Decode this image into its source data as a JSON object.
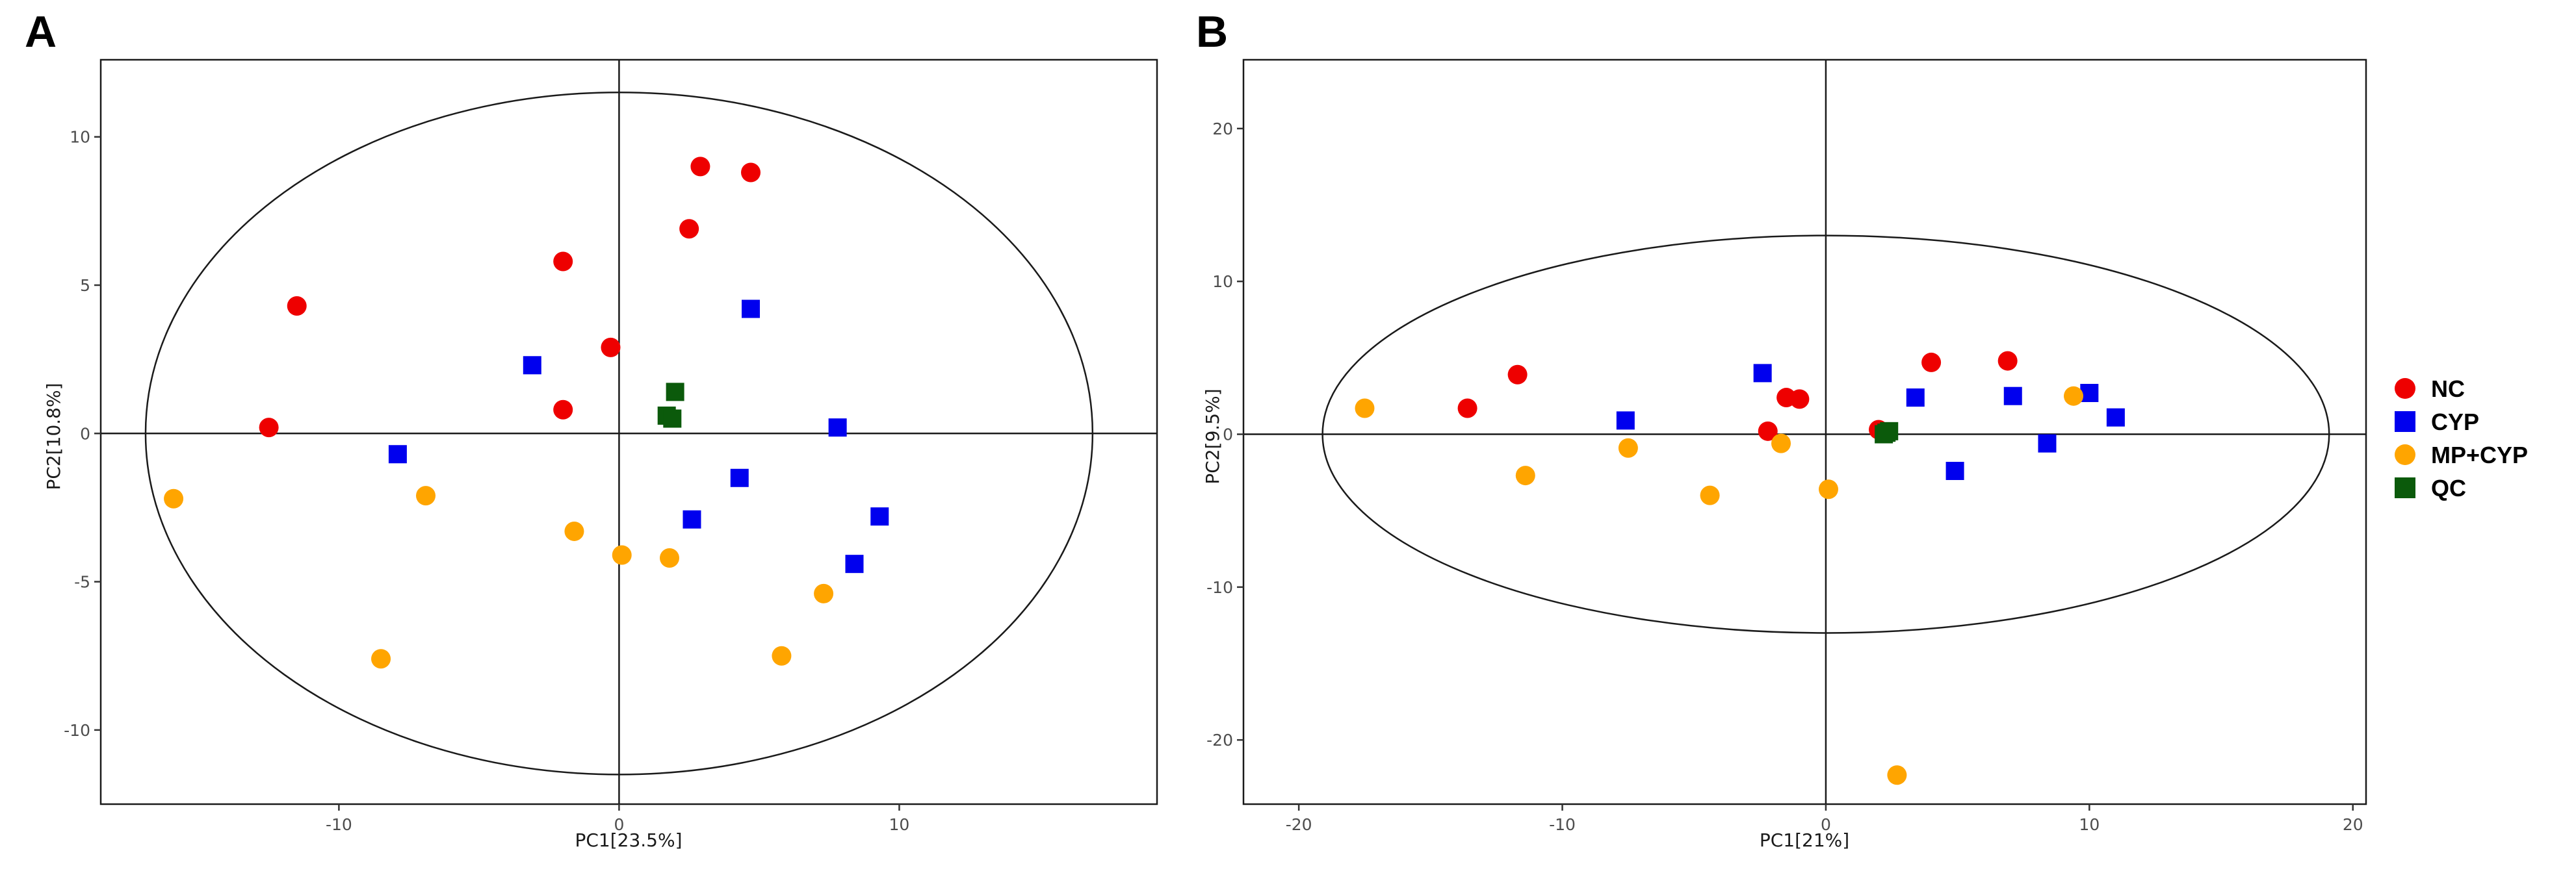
{
  "chart_data": [
    {
      "type": "scatter",
      "panel_label": "A",
      "title": "",
      "xlabel": "PC1[23.5%]",
      "ylabel": "PC2[10.8%]",
      "xlim": [
        -18.5,
        19.2
      ],
      "ylim": [
        -12.5,
        12.6
      ],
      "xticks": [
        -10,
        0,
        10
      ],
      "xtick_labels": [
        "-10",
        "0",
        "10"
      ],
      "yticks": [
        -10,
        -5,
        0,
        5,
        10
      ],
      "ytick_labels": [
        "-10",
        "-5",
        "0",
        "5",
        "10"
      ],
      "grid": false,
      "ellipse": {
        "cx": 0,
        "cy": 0,
        "rx": 16.9,
        "ry": 11.5
      },
      "series": [
        {
          "name": "NC",
          "marker": "circle",
          "color": "#ee0000",
          "points": [
            [
              -11.5,
              4.3
            ],
            [
              -12.5,
              0.2
            ],
            [
              -2.0,
              5.8
            ],
            [
              -2.0,
              0.8
            ],
            [
              -0.3,
              2.9
            ],
            [
              2.5,
              6.9
            ],
            [
              2.9,
              9.0
            ],
            [
              4.7,
              8.8
            ]
          ]
        },
        {
          "name": "CYP",
          "marker": "square",
          "color": "#0000ee",
          "points": [
            [
              -7.9,
              -0.7
            ],
            [
              -3.1,
              2.3
            ],
            [
              4.7,
              4.2
            ],
            [
              7.8,
              0.2
            ],
            [
              4.3,
              -1.5
            ],
            [
              2.6,
              -2.9
            ],
            [
              9.3,
              -2.8
            ],
            [
              8.4,
              -4.4
            ]
          ]
        },
        {
          "name": "MP+CYP",
          "marker": "circle",
          "color": "#ffa500",
          "points": [
            [
              -15.9,
              -2.2
            ],
            [
              -6.9,
              -2.1
            ],
            [
              -8.5,
              -7.6
            ],
            [
              -1.6,
              -3.3
            ],
            [
              0.1,
              -4.1
            ],
            [
              1.8,
              -4.2
            ],
            [
              7.3,
              -5.4
            ],
            [
              5.8,
              -7.5
            ]
          ]
        },
        {
          "name": "QC",
          "marker": "square",
          "color": "#0b5a0b",
          "points": [
            [
              1.7,
              0.6
            ],
            [
              2.0,
              1.4
            ],
            [
              1.9,
              0.5
            ]
          ]
        }
      ]
    },
    {
      "type": "scatter",
      "panel_label": "B",
      "title": "",
      "xlabel": "PC1[21%]",
      "ylabel": "PC2[9.5%]",
      "xlim": [
        -22.1,
        20.5
      ],
      "ylim": [
        -24.2,
        24.5
      ],
      "xticks": [
        -20,
        -10,
        0,
        10,
        20
      ],
      "xtick_labels": [
        "-20",
        "-10",
        "0",
        "10",
        "20"
      ],
      "yticks": [
        -20,
        -10,
        0,
        10,
        20
      ],
      "ytick_labels": [
        "-20",
        "-10",
        "0",
        "10",
        "20"
      ],
      "grid": false,
      "ellipse": {
        "cx": 0,
        "cy": 0,
        "rx": 19.1,
        "ry": 13.0
      },
      "series": [
        {
          "name": "NC",
          "marker": "circle",
          "color": "#ee0000",
          "points": [
            [
              -13.6,
              1.7
            ],
            [
              -11.7,
              3.9
            ],
            [
              -2.2,
              0.2
            ],
            [
              -1.5,
              2.4
            ],
            [
              -1.0,
              2.3
            ],
            [
              2.0,
              0.3
            ],
            [
              4.0,
              4.7
            ],
            [
              6.9,
              4.8
            ]
          ]
        },
        {
          "name": "CYP",
          "marker": "square",
          "color": "#0000ee",
          "points": [
            [
              -7.6,
              0.9
            ],
            [
              -2.4,
              4.0
            ],
            [
              3.4,
              2.4
            ],
            [
              4.9,
              -2.4
            ],
            [
              7.1,
              2.5
            ],
            [
              8.4,
              -0.6
            ],
            [
              10.0,
              2.7
            ],
            [
              11.0,
              1.1
            ]
          ]
        },
        {
          "name": "MP+CYP",
          "marker": "circle",
          "color": "#ffa500",
          "points": [
            [
              -17.5,
              1.7
            ],
            [
              -11.4,
              -2.7
            ],
            [
              -7.5,
              -0.9
            ],
            [
              -4.4,
              -4.0
            ],
            [
              -1.7,
              -0.6
            ],
            [
              0.1,
              -3.6
            ],
            [
              9.4,
              2.5
            ],
            [
              2.7,
              -22.3
            ]
          ]
        },
        {
          "name": "QC",
          "marker": "square",
          "color": "#0b5a0b",
          "points": [
            [
              2.2,
              0.0
            ],
            [
              2.4,
              0.2
            ],
            [
              2.3,
              0.1
            ]
          ]
        }
      ]
    }
  ],
  "legend": {
    "placement": "right",
    "items": [
      {
        "label": "NC",
        "marker": "circle",
        "color": "#ee0000"
      },
      {
        "label": "CYP",
        "marker": "square",
        "color": "#0000ee"
      },
      {
        "label": "MP+CYP",
        "marker": "circle",
        "color": "#ffa500"
      },
      {
        "label": "QC",
        "marker": "square",
        "color": "#0b5a0b"
      }
    ]
  }
}
